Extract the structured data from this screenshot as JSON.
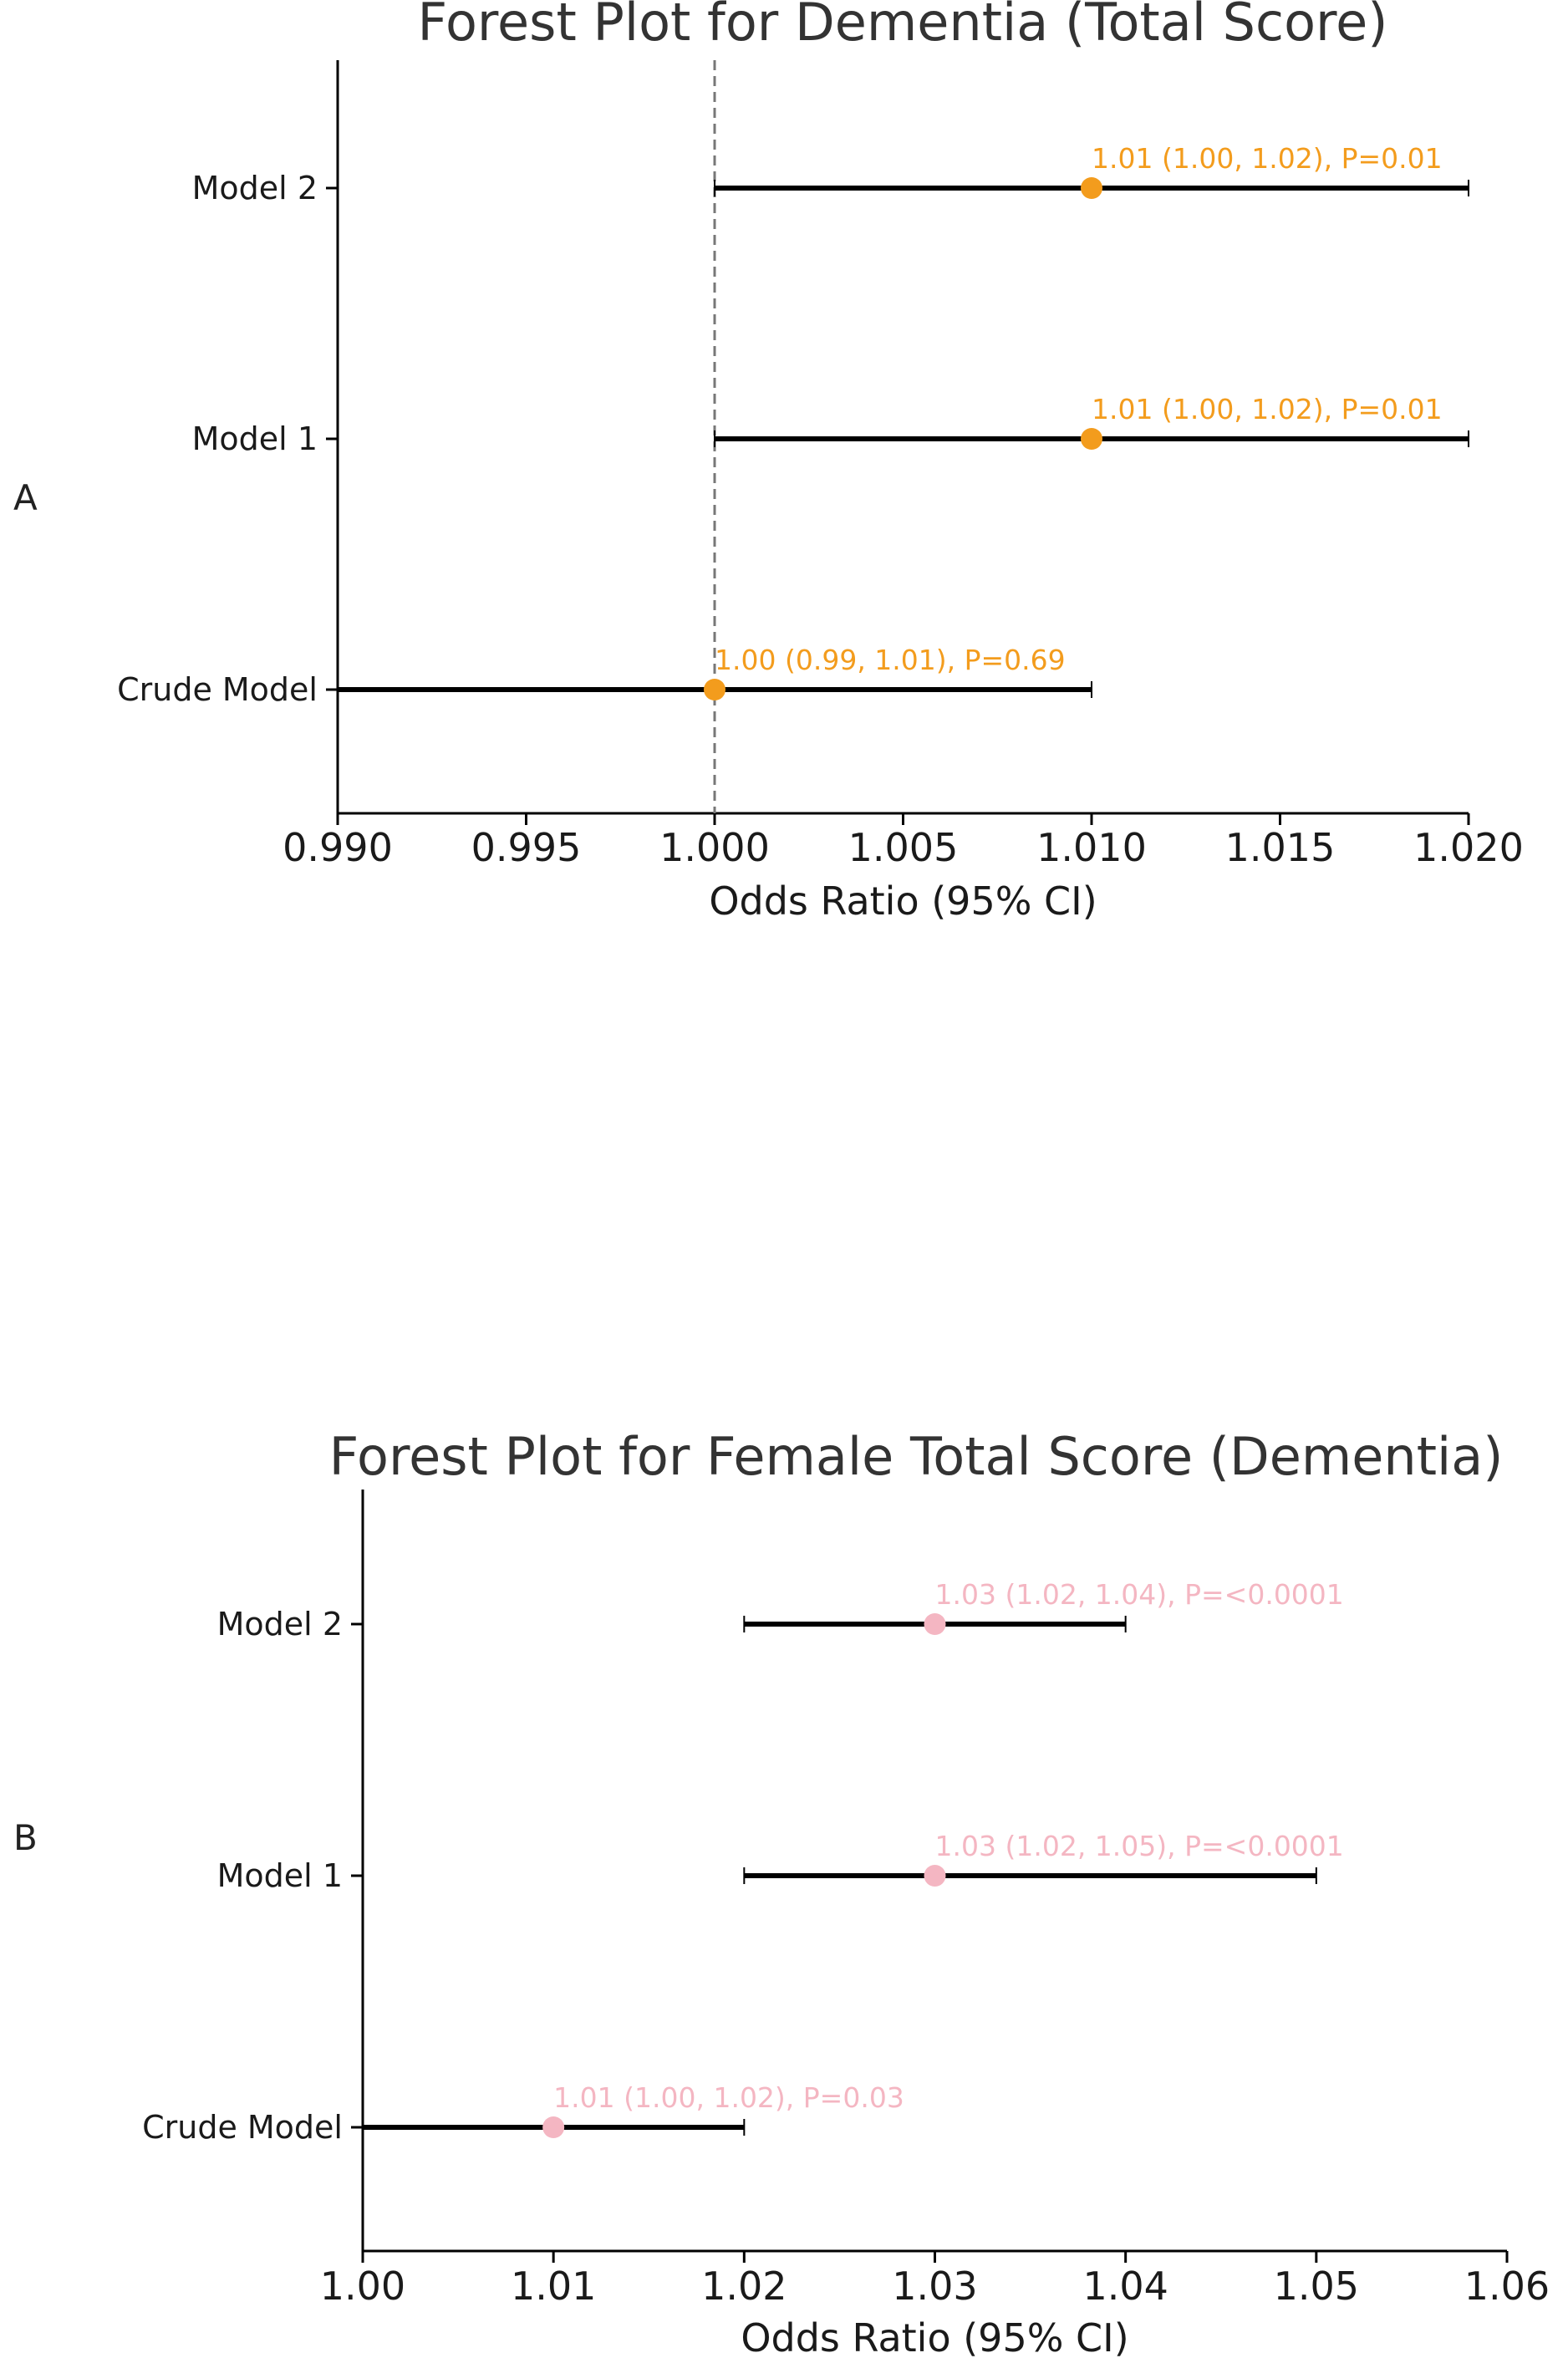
{
  "chart_data": [
    {
      "panel_label": "A",
      "type": "forest",
      "title": "Forest Plot for Dementia (Total Score)",
      "xlabel": "Odds Ratio (95% CI)",
      "ylabel": "",
      "xlim": [
        0.99,
        1.02
      ],
      "xticks": [
        "0.990",
        "0.995",
        "1.000",
        "1.005",
        "1.010",
        "1.015",
        "1.020"
      ],
      "reference_line": 1.0,
      "grid": false,
      "point_color": "#f39c1d",
      "label_color": "#f39c1d",
      "rows": [
        {
          "name": "Crude Model",
          "or": 1.0,
          "lo": 0.99,
          "hi": 1.01,
          "label": "1.00 (0.99, 1.01), P=0.69"
        },
        {
          "name": "Model 1",
          "or": 1.01,
          "lo": 1.0,
          "hi": 1.02,
          "label": "1.01 (1.00, 1.02), P=0.01"
        },
        {
          "name": "Model 2",
          "or": 1.01,
          "lo": 1.0,
          "hi": 1.02,
          "label": "1.01 (1.00, 1.02), P=0.01"
        }
      ]
    },
    {
      "panel_label": "B",
      "type": "forest",
      "title": "Forest Plot for Female Total Score (Dementia)",
      "xlabel": "Odds Ratio (95% CI)",
      "ylabel": "",
      "xlim": [
        1.0,
        1.06
      ],
      "xticks": [
        "1.00",
        "1.01",
        "1.02",
        "1.03",
        "1.04",
        "1.05",
        "1.06"
      ],
      "reference_line": null,
      "grid": false,
      "point_color": "#f4b6c2",
      "label_color": "#f4b6c2",
      "rows": [
        {
          "name": "Crude Model",
          "or": 1.01,
          "lo": 1.0,
          "hi": 1.02,
          "label": "1.01 (1.00, 1.02), P=0.03"
        },
        {
          "name": "Model 1",
          "or": 1.03,
          "lo": 1.02,
          "hi": 1.05,
          "label": "1.03 (1.02, 1.05), P=<0.0001"
        },
        {
          "name": "Model 2",
          "or": 1.03,
          "lo": 1.02,
          "hi": 1.04,
          "label": "1.03 (1.02, 1.04), P=<0.0001"
        }
      ]
    }
  ]
}
